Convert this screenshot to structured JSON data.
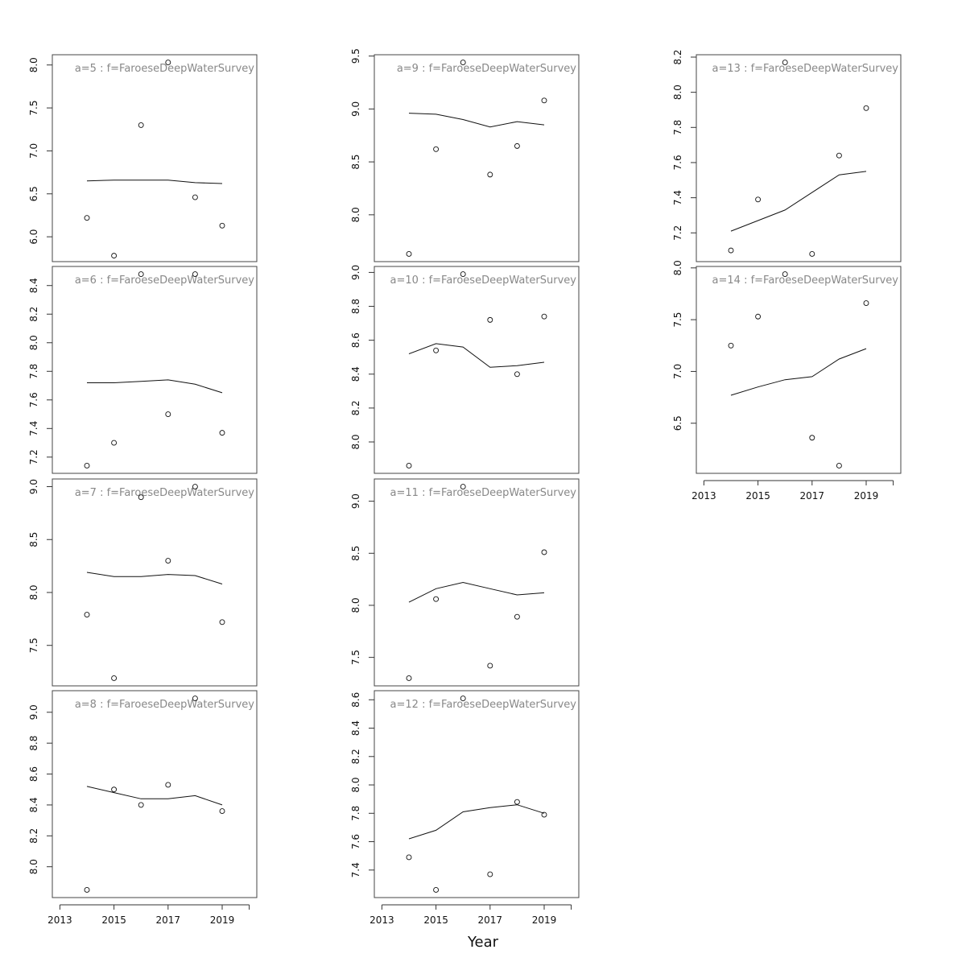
{
  "figure": {
    "xlabel": "Year"
  },
  "chart_data": [
    {
      "type": "scatter",
      "title": "a=5 : f=FaroeseDeepWaterSurvey",
      "ylim": [
        5.8,
        8.03
      ],
      "yticks": [
        6.0,
        6.5,
        7.0,
        7.5,
        8.0
      ],
      "points": [
        [
          2014,
          6.22
        ],
        [
          2015,
          5.78
        ],
        [
          2016,
          7.3
        ],
        [
          2017,
          8.03
        ],
        [
          2018,
          6.46
        ],
        [
          2019,
          6.13
        ]
      ],
      "fit": [
        [
          2014,
          6.65
        ],
        [
          2015,
          6.66
        ],
        [
          2016,
          6.66
        ],
        [
          2017,
          6.66
        ],
        [
          2018,
          6.63
        ],
        [
          2019,
          6.62
        ]
      ]
    },
    {
      "type": "scatter",
      "title": "a=6 : f=FaroeseDeepWaterSurvey",
      "ylim": [
        7.14,
        8.48
      ],
      "yticks": [
        7.2,
        7.4,
        7.6,
        7.8,
        8.0,
        8.2,
        8.4
      ],
      "points": [
        [
          2014,
          7.14
        ],
        [
          2015,
          7.3
        ],
        [
          2016,
          8.48
        ],
        [
          2017,
          7.5
        ],
        [
          2018,
          8.48
        ],
        [
          2019,
          7.37
        ]
      ],
      "fit": [
        [
          2014,
          7.72
        ],
        [
          2015,
          7.72
        ],
        [
          2016,
          7.73
        ],
        [
          2017,
          7.74
        ],
        [
          2018,
          7.71
        ],
        [
          2019,
          7.65
        ]
      ]
    },
    {
      "type": "scatter",
      "title": "a=7 : f=FaroeseDeepWaterSurvey",
      "ylim": [
        7.19,
        9.0
      ],
      "yticks": [
        7.5,
        8.0,
        8.5,
        9.0
      ],
      "points": [
        [
          2014,
          7.79
        ],
        [
          2015,
          7.19
        ],
        [
          2016,
          8.9
        ],
        [
          2017,
          8.3
        ],
        [
          2018,
          9.0
        ],
        [
          2019,
          7.72
        ]
      ],
      "fit": [
        [
          2014,
          8.19
        ],
        [
          2015,
          8.15
        ],
        [
          2016,
          8.15
        ],
        [
          2017,
          8.17
        ],
        [
          2018,
          8.16
        ],
        [
          2019,
          8.08
        ]
      ]
    },
    {
      "type": "scatter",
      "title": "a=8 : f=FaroeseDeepWaterSurvey",
      "ylim": [
        7.85,
        9.09
      ],
      "yticks": [
        8.0,
        8.2,
        8.4,
        8.6,
        8.8,
        9.0
      ],
      "points": [
        [
          2014,
          7.85
        ],
        [
          2015,
          8.5
        ],
        [
          2016,
          8.4
        ],
        [
          2017,
          8.53
        ],
        [
          2018,
          9.09
        ],
        [
          2019,
          8.36
        ]
      ],
      "fit": [
        [
          2014,
          8.52
        ],
        [
          2015,
          8.48
        ],
        [
          2016,
          8.44
        ],
        [
          2017,
          8.44
        ],
        [
          2018,
          8.46
        ],
        [
          2019,
          8.4
        ]
      ]
    },
    {
      "type": "scatter",
      "title": "a=9 : f=FaroeseDeepWaterSurvey",
      "ylim": [
        7.63,
        9.44
      ],
      "yticks": [
        8.0,
        8.5,
        9.0,
        9.5
      ],
      "points": [
        [
          2014,
          7.63
        ],
        [
          2015,
          8.62
        ],
        [
          2016,
          9.44
        ],
        [
          2017,
          8.38
        ],
        [
          2018,
          8.65
        ],
        [
          2019,
          9.08
        ]
      ],
      "fit": [
        [
          2014,
          8.96
        ],
        [
          2015,
          8.95
        ],
        [
          2016,
          8.9
        ],
        [
          2017,
          8.83
        ],
        [
          2018,
          8.88
        ],
        [
          2019,
          8.85
        ]
      ]
    },
    {
      "type": "scatter",
      "title": "a=10 : f=FaroeseDeepWaterSurvey",
      "ylim": [
        7.86,
        8.99
      ],
      "yticks": [
        8.0,
        8.2,
        8.4,
        8.6,
        8.8,
        9.0
      ],
      "points": [
        [
          2014,
          7.86
        ],
        [
          2015,
          8.54
        ],
        [
          2016,
          8.99
        ],
        [
          2017,
          8.72
        ],
        [
          2018,
          8.4
        ],
        [
          2019,
          8.74
        ]
      ],
      "fit": [
        [
          2014,
          8.52
        ],
        [
          2015,
          8.58
        ],
        [
          2016,
          8.56
        ],
        [
          2017,
          8.44
        ],
        [
          2018,
          8.45
        ],
        [
          2019,
          8.47
        ]
      ]
    },
    {
      "type": "scatter",
      "title": "a=11 : f=FaroeseDeepWaterSurvey",
      "ylim": [
        7.3,
        9.14
      ],
      "yticks": [
        7.5,
        8.0,
        8.5,
        9.0
      ],
      "points": [
        [
          2014,
          7.3
        ],
        [
          2015,
          8.06
        ],
        [
          2016,
          9.14
        ],
        [
          2017,
          7.42
        ],
        [
          2018,
          7.89
        ],
        [
          2019,
          8.51
        ]
      ],
      "fit": [
        [
          2014,
          8.03
        ],
        [
          2015,
          8.16
        ],
        [
          2016,
          8.22
        ],
        [
          2017,
          8.16
        ],
        [
          2018,
          8.1
        ],
        [
          2019,
          8.12
        ]
      ]
    },
    {
      "type": "scatter",
      "title": "a=12 : f=FaroeseDeepWaterSurvey",
      "ylim": [
        7.26,
        8.61
      ],
      "yticks": [
        7.4,
        7.6,
        7.8,
        8.0,
        8.2,
        8.4,
        8.6
      ],
      "points": [
        [
          2014,
          7.49
        ],
        [
          2015,
          7.26
        ],
        [
          2016,
          8.61
        ],
        [
          2017,
          7.37
        ],
        [
          2018,
          7.88
        ],
        [
          2019,
          7.79
        ]
      ],
      "fit": [
        [
          2014,
          7.62
        ],
        [
          2015,
          7.68
        ],
        [
          2016,
          7.81
        ],
        [
          2017,
          7.84
        ],
        [
          2018,
          7.86
        ],
        [
          2019,
          7.8
        ]
      ]
    },
    {
      "type": "scatter",
      "title": "a=13 : f=FaroeseDeepWaterSurvey",
      "ylim": [
        7.08,
        8.17
      ],
      "yticks": [
        7.2,
        7.4,
        7.6,
        7.8,
        8.0,
        8.2
      ],
      "points": [
        [
          2014,
          7.1
        ],
        [
          2015,
          7.39
        ],
        [
          2016,
          8.17
        ],
        [
          2017,
          7.08
        ],
        [
          2018,
          7.64
        ],
        [
          2019,
          7.91
        ]
      ],
      "fit": [
        [
          2014,
          7.21
        ],
        [
          2015,
          7.27
        ],
        [
          2016,
          7.33
        ],
        [
          2017,
          7.43
        ],
        [
          2018,
          7.53
        ],
        [
          2019,
          7.55
        ]
      ]
    },
    {
      "type": "scatter",
      "title": "a=14 : f=FaroeseDeepWaterSurvey",
      "ylim": [
        6.09,
        7.94
      ],
      "yticks": [
        6.5,
        7.0,
        7.5,
        8.0
      ],
      "points": [
        [
          2014,
          7.25
        ],
        [
          2015,
          7.53
        ],
        [
          2016,
          7.94
        ],
        [
          2017,
          6.36
        ],
        [
          2018,
          6.09
        ],
        [
          2019,
          7.66
        ]
      ],
      "fit": [
        [
          2014,
          6.77
        ],
        [
          2015,
          6.85
        ],
        [
          2016,
          6.92
        ],
        [
          2017,
          6.95
        ],
        [
          2018,
          7.12
        ],
        [
          2019,
          7.22
        ]
      ]
    }
  ],
  "xaxis": {
    "xlim": [
      2013,
      2020
    ],
    "ticks": [
      2013,
      2015,
      2017,
      2019,
      2020
    ],
    "labels": [
      "2013",
      "2015",
      "2017",
      "2019",
      ""
    ]
  }
}
